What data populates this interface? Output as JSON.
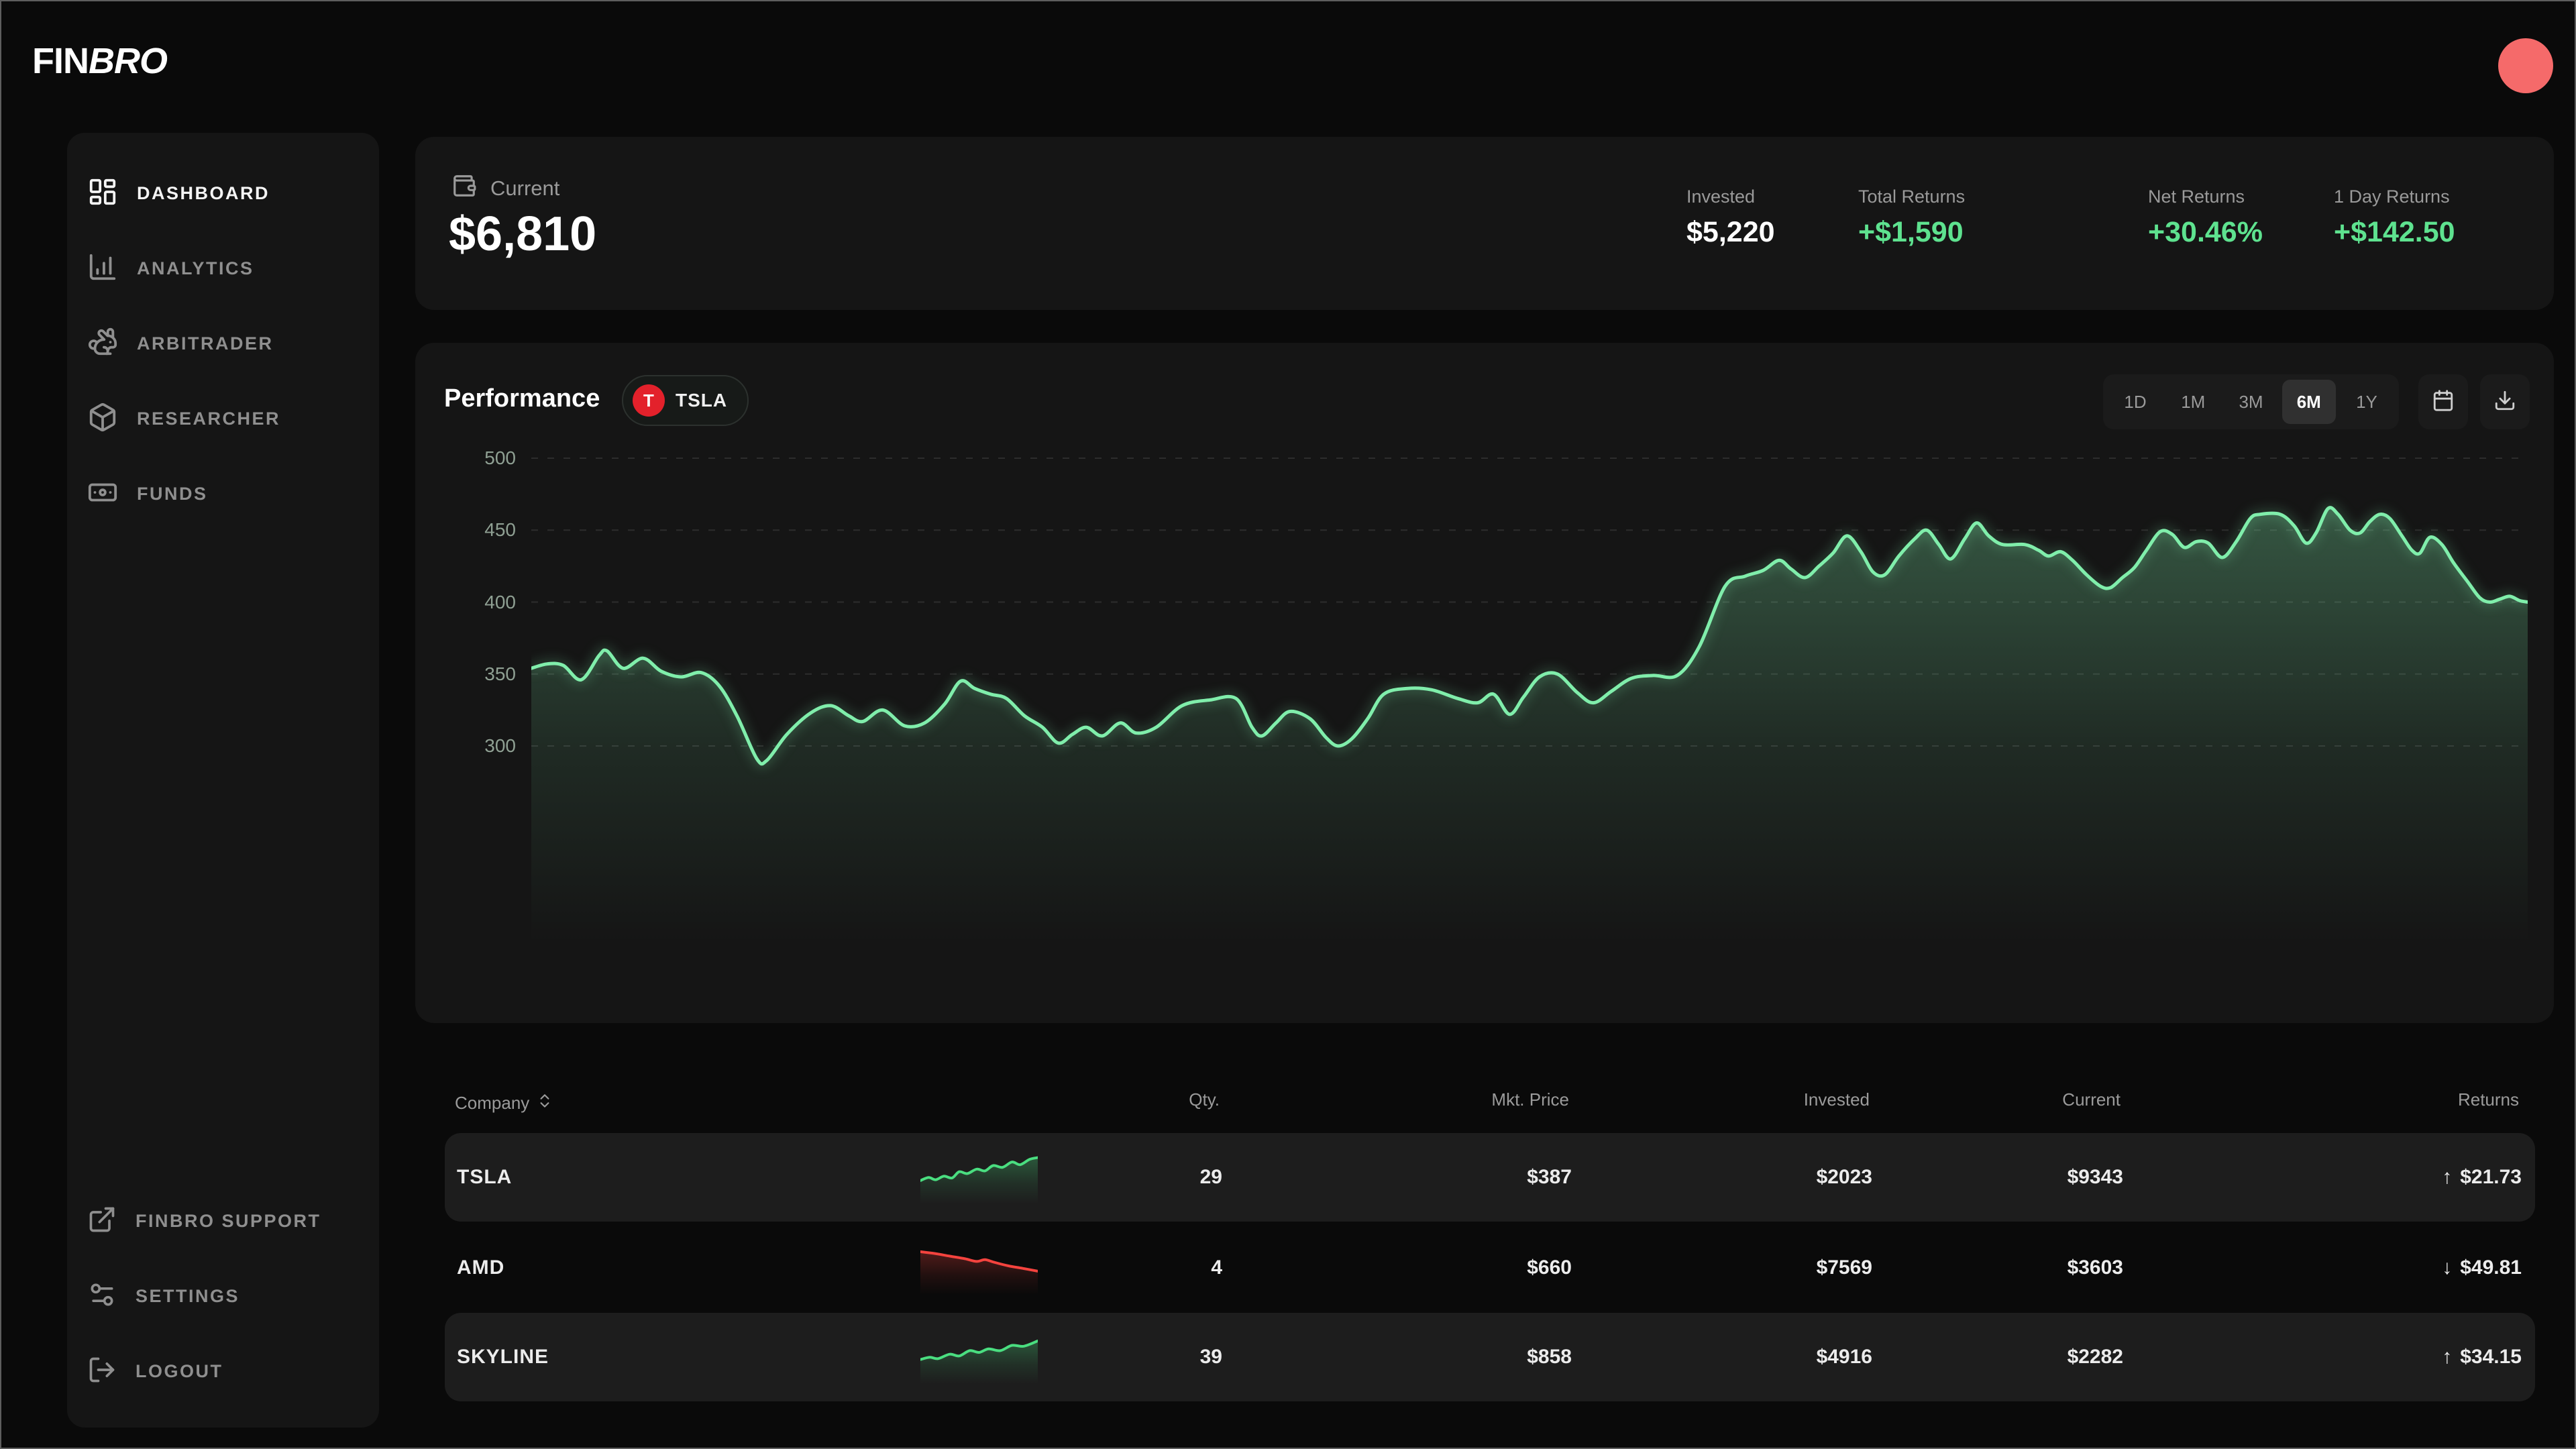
{
  "header": {
    "logo_fin": "FIN",
    "logo_bro": "BRO",
    "avatar_color": "#f56a6a"
  },
  "sidebar": {
    "items": [
      {
        "label": "DASHBOARD",
        "icon": "dashboard-icon",
        "active": true
      },
      {
        "label": "ANALYTICS",
        "icon": "bar-chart-icon",
        "active": false
      },
      {
        "label": "ARBITRADER",
        "icon": "rabbit-icon",
        "active": false
      },
      {
        "label": "RESEARCHER",
        "icon": "box-icon",
        "active": false
      },
      {
        "label": "FUNDS",
        "icon": "banknote-icon",
        "active": false
      }
    ],
    "footer_items": [
      {
        "label": "FINBRO SUPPORT",
        "icon": "external-link-icon"
      },
      {
        "label": "SETTINGS",
        "icon": "sliders-icon"
      },
      {
        "label": "LOGOUT",
        "icon": "logout-icon"
      }
    ]
  },
  "summary": {
    "label": "Current",
    "value": "$6,810",
    "stats": [
      {
        "label": "Invested",
        "value": "$5,220",
        "tone": "white"
      },
      {
        "label": "Total Returns",
        "value": "+$1,590",
        "tone": "green"
      },
      {
        "label": "Net Returns",
        "value": "+30.46%",
        "tone": "green"
      },
      {
        "label": "1 Day Returns",
        "value": "+$142.50",
        "tone": "green"
      }
    ]
  },
  "performance": {
    "title": "Performance",
    "badge": {
      "letter": "T",
      "ticker": "TSLA",
      "circle_color": "#e3212b"
    },
    "ranges": [
      "1D",
      "1M",
      "3M",
      "6M",
      "1Y"
    ],
    "active_range": "6M"
  },
  "chart_data": {
    "type": "area",
    "title": "Performance",
    "series_name": "TSLA",
    "x_range": "6M",
    "ylim": [
      280,
      510
    ],
    "y_ticks": [
      500,
      450,
      400,
      350,
      300
    ],
    "grid": "dashed-horizontal",
    "legend": "none",
    "line_color": "#80eeab",
    "points": [
      [
        0,
        354
      ],
      [
        0.008,
        357
      ],
      [
        0.016,
        356
      ],
      [
        0.025,
        346
      ],
      [
        0.034,
        363
      ],
      [
        0.038,
        366
      ],
      [
        0.046,
        354
      ],
      [
        0.056,
        361
      ],
      [
        0.065,
        352
      ],
      [
        0.075,
        348
      ],
      [
        0.085,
        351
      ],
      [
        0.094,
        342
      ],
      [
        0.103,
        321
      ],
      [
        0.113,
        291
      ],
      [
        0.118,
        290
      ],
      [
        0.128,
        308
      ],
      [
        0.14,
        323
      ],
      [
        0.15,
        328
      ],
      [
        0.159,
        321
      ],
      [
        0.166,
        317
      ],
      [
        0.176,
        325
      ],
      [
        0.187,
        314
      ],
      [
        0.197,
        316
      ],
      [
        0.207,
        329
      ],
      [
        0.215,
        345
      ],
      [
        0.222,
        340
      ],
      [
        0.23,
        336
      ],
      [
        0.238,
        333
      ],
      [
        0.247,
        321
      ],
      [
        0.256,
        313
      ],
      [
        0.264,
        302
      ],
      [
        0.271,
        308
      ],
      [
        0.278,
        313
      ],
      [
        0.286,
        307
      ],
      [
        0.295,
        316
      ],
      [
        0.303,
        309
      ],
      [
        0.313,
        313
      ],
      [
        0.326,
        328
      ],
      [
        0.34,
        332
      ],
      [
        0.353,
        333
      ],
      [
        0.361,
        313
      ],
      [
        0.366,
        307
      ],
      [
        0.373,
        316
      ],
      [
        0.38,
        324
      ],
      [
        0.39,
        319
      ],
      [
        0.398,
        306
      ],
      [
        0.404,
        300
      ],
      [
        0.411,
        305
      ],
      [
        0.419,
        319
      ],
      [
        0.427,
        336
      ],
      [
        0.439,
        340
      ],
      [
        0.451,
        339
      ],
      [
        0.464,
        333
      ],
      [
        0.474,
        330
      ],
      [
        0.482,
        336
      ],
      [
        0.49,
        322
      ],
      [
        0.497,
        334
      ],
      [
        0.505,
        348
      ],
      [
        0.514,
        350
      ],
      [
        0.524,
        337
      ],
      [
        0.532,
        330
      ],
      [
        0.541,
        338
      ],
      [
        0.551,
        347
      ],
      [
        0.562,
        349
      ],
      [
        0.574,
        349
      ],
      [
        0.585,
        369
      ],
      [
        0.598,
        411
      ],
      [
        0.608,
        418
      ],
      [
        0.617,
        422
      ],
      [
        0.625,
        429
      ],
      [
        0.631,
        423
      ],
      [
        0.638,
        417
      ],
      [
        0.645,
        425
      ],
      [
        0.652,
        434
      ],
      [
        0.659,
        446
      ],
      [
        0.666,
        435
      ],
      [
        0.672,
        421
      ],
      [
        0.678,
        419
      ],
      [
        0.685,
        432
      ],
      [
        0.693,
        444
      ],
      [
        0.699,
        450
      ],
      [
        0.705,
        440
      ],
      [
        0.711,
        430
      ],
      [
        0.718,
        444
      ],
      [
        0.724,
        455
      ],
      [
        0.73,
        446
      ],
      [
        0.737,
        440
      ],
      [
        0.748,
        440
      ],
      [
        0.755,
        436
      ],
      [
        0.76,
        432
      ],
      [
        0.766,
        435
      ],
      [
        0.772,
        429
      ],
      [
        0.779,
        419
      ],
      [
        0.786,
        411
      ],
      [
        0.791,
        410
      ],
      [
        0.797,
        417
      ],
      [
        0.803,
        424
      ],
      [
        0.809,
        436
      ],
      [
        0.816,
        449
      ],
      [
        0.822,
        447
      ],
      [
        0.828,
        438
      ],
      [
        0.834,
        442
      ],
      [
        0.84,
        441
      ],
      [
        0.847,
        431
      ],
      [
        0.854,
        442
      ],
      [
        0.861,
        458
      ],
      [
        0.866,
        461
      ],
      [
        0.876,
        461
      ],
      [
        0.883,
        453
      ],
      [
        0.889,
        441
      ],
      [
        0.894,
        448
      ],
      [
        0.9,
        465
      ],
      [
        0.905,
        461
      ],
      [
        0.911,
        450
      ],
      [
        0.916,
        448
      ],
      [
        0.921,
        456
      ],
      [
        0.926,
        461
      ],
      [
        0.931,
        458
      ],
      [
        0.937,
        446
      ],
      [
        0.942,
        436
      ],
      [
        0.946,
        434
      ],
      [
        0.951,
        445
      ],
      [
        0.957,
        440
      ],
      [
        0.963,
        427
      ],
      [
        0.97,
        414
      ],
      [
        0.976,
        403
      ],
      [
        0.981,
        400
      ],
      [
        0.986,
        402
      ],
      [
        0.991,
        404
      ],
      [
        0.996,
        401
      ],
      [
        1,
        400
      ]
    ]
  },
  "table": {
    "headers": {
      "company": "Company",
      "qty": "Qty.",
      "mkt_price": "Mkt. Price",
      "invested": "Invested",
      "current": "Current",
      "returns": "Returns"
    },
    "rows": [
      {
        "company": "TSLA",
        "qty": "29",
        "mkt_price": "$387",
        "invested": "$2023",
        "current": "$9343",
        "arrow": "↑",
        "returns": "$21.73",
        "trend": "up",
        "spark": {
          "color": "#4ade80",
          "points": [
            [
              0,
              0.62
            ],
            [
              0.07,
              0.55
            ],
            [
              0.13,
              0.6
            ],
            [
              0.2,
              0.52
            ],
            [
              0.27,
              0.56
            ],
            [
              0.33,
              0.42
            ],
            [
              0.4,
              0.46
            ],
            [
              0.48,
              0.36
            ],
            [
              0.55,
              0.4
            ],
            [
              0.62,
              0.28
            ],
            [
              0.7,
              0.32
            ],
            [
              0.78,
              0.2
            ],
            [
              0.85,
              0.26
            ],
            [
              0.93,
              0.14
            ],
            [
              1,
              0.1
            ]
          ]
        }
      },
      {
        "company": "AMD",
        "qty": "4",
        "mkt_price": "$660",
        "invested": "$7569",
        "current": "$3603",
        "arrow": "↓",
        "returns": "$49.81",
        "trend": "down",
        "spark": {
          "color": "#f4433e",
          "points": [
            [
              0,
              0.18
            ],
            [
              0.12,
              0.22
            ],
            [
              0.25,
              0.28
            ],
            [
              0.38,
              0.34
            ],
            [
              0.48,
              0.4
            ],
            [
              0.55,
              0.36
            ],
            [
              0.63,
              0.42
            ],
            [
              0.75,
              0.5
            ],
            [
              0.88,
              0.56
            ],
            [
              1,
              0.62
            ]
          ]
        }
      },
      {
        "company": "SKYLINE",
        "qty": "39",
        "mkt_price": "$858",
        "invested": "$4916",
        "current": "$2282",
        "arrow": "↑",
        "returns": "$34.15",
        "trend": "up",
        "spark": {
          "color": "#4ade80",
          "points": [
            [
              0,
              0.6
            ],
            [
              0.08,
              0.55
            ],
            [
              0.15,
              0.58
            ],
            [
              0.25,
              0.48
            ],
            [
              0.33,
              0.52
            ],
            [
              0.42,
              0.4
            ],
            [
              0.5,
              0.44
            ],
            [
              0.58,
              0.36
            ],
            [
              0.68,
              0.4
            ],
            [
              0.78,
              0.28
            ],
            [
              0.88,
              0.3
            ],
            [
              1,
              0.18
            ]
          ]
        }
      }
    ]
  },
  "colors": {
    "green": "#5ee28f",
    "red": "#f4635e",
    "grid": "#2d2d2d"
  }
}
